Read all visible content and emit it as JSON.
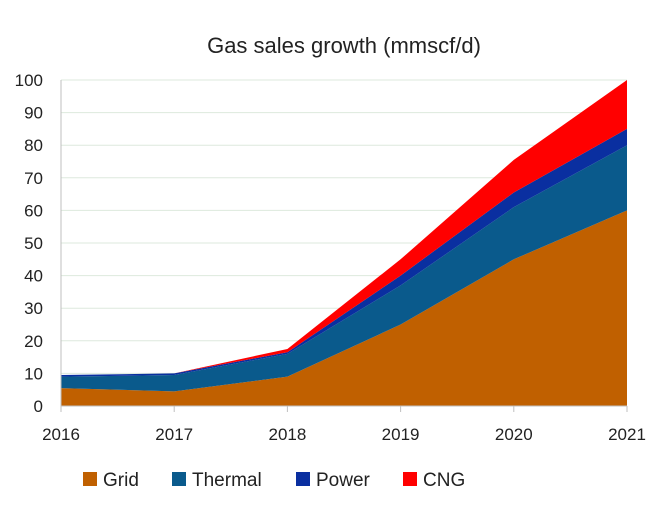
{
  "chart_data": {
    "type": "area",
    "stacked": true,
    "title": "Gas sales growth (mmscf/d)",
    "xlabel": "",
    "ylabel": "",
    "x": [
      "2016",
      "2017",
      "2018",
      "2019",
      "2020",
      "2021"
    ],
    "ylim": [
      0,
      100
    ],
    "yticks": [
      0,
      10,
      20,
      30,
      40,
      50,
      60,
      70,
      80,
      90,
      100
    ],
    "grid": true,
    "legend_position": "bottom",
    "series": [
      {
        "name": "Grid",
        "color": "#C06000",
        "values": [
          5.5,
          4.5,
          9,
          25,
          45,
          60
        ]
      },
      {
        "name": "Thermal",
        "color": "#0A5A8C",
        "values": [
          3.5,
          5,
          7,
          12,
          16,
          20
        ]
      },
      {
        "name": "Power",
        "color": "#0A2FA0",
        "values": [
          0.5,
          0.5,
          0.5,
          3,
          4.5,
          5
        ]
      },
      {
        "name": "CNG",
        "color": "#FF0000",
        "values": [
          0,
          0,
          1,
          5,
          10,
          15
        ]
      }
    ]
  }
}
